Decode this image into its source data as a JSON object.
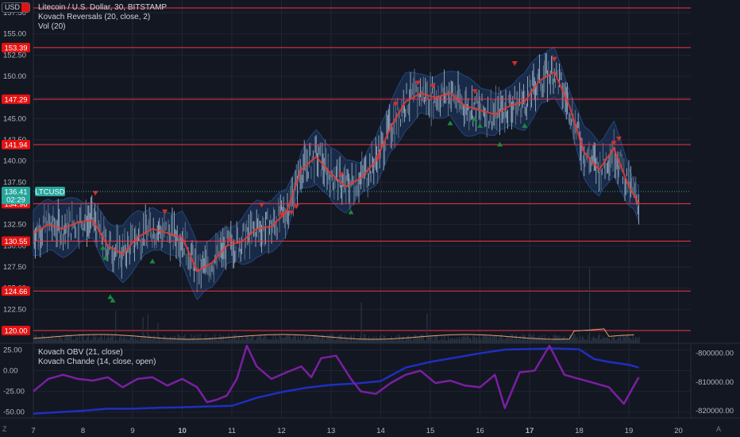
{
  "chart": {
    "legend": [
      "Litecoin / U.S. Dollar, 30, BITSTAMP",
      "Kovach Reversals (20, close, 2)",
      "Vol (20)"
    ],
    "sub_legend": [
      "Kovach OBV (21, close)",
      "Kovach Chande (14, close, open)"
    ],
    "currency": "USD",
    "symbol": "LTCUSD",
    "last_price": "136.41",
    "countdown": "02:29",
    "corner_left": "Z",
    "corner_right": "A",
    "colors": {
      "background": "#131722",
      "level": "#f23645",
      "ma": "#e53935",
      "band": "#1e3a66",
      "obv": "#1f2fbf",
      "chande": "#7b1fa2",
      "up": "#1b8a3a",
      "down": "#d32f2f",
      "volume": "#2a3544"
    }
  },
  "chart_data": [
    {
      "type": "line",
      "x_labels": [
        "7",
        "8",
        "9",
        "10",
        "11",
        "12",
        "13",
        "14",
        "15",
        "16",
        "17",
        "18",
        "19",
        "20"
      ],
      "y_ticks": [
        "157.50",
        "155.00",
        "152.50",
        "150.00",
        "147.50",
        "145.00",
        "142.50",
        "140.00",
        "137.50",
        "135.00",
        "132.50",
        "130.00",
        "127.50",
        "125.00",
        "122.50",
        "120.00"
      ],
      "ylim": [
        118.5,
        159.0
      ],
      "levels": [
        "153.39",
        "147.29",
        "141.94",
        "134.96",
        "130.55",
        "124.66",
        "120.00"
      ],
      "series": [
        {
          "name": "",
          "x": [
            7.0,
            7.3,
            7.6,
            7.9,
            8.2,
            8.5,
            8.8,
            9.1,
            9.4,
            9.7,
            10.0,
            10.3,
            10.6,
            10.9,
            11.2,
            11.5,
            11.8,
            12.1,
            12.4,
            12.7,
            13.0,
            13.3,
            13.6,
            13.9,
            14.2,
            14.5,
            14.8,
            15.1,
            15.4,
            15.7,
            16.0,
            16.3,
            16.6,
            16.9,
            17.2,
            17.5,
            17.8,
            18.1,
            18.4,
            18.7,
            19.0,
            19.2
          ],
          "y": [
            131.5,
            132.5,
            132.0,
            132.8,
            133.0,
            130.0,
            129.0,
            131.0,
            132.0,
            131.5,
            131.0,
            127.0,
            128.0,
            130.0,
            130.5,
            132.0,
            132.3,
            134.0,
            139.0,
            140.5,
            138.5,
            137.0,
            138.0,
            140.0,
            144.0,
            147.0,
            148.0,
            147.5,
            148.0,
            146.5,
            146.0,
            145.5,
            146.5,
            147.0,
            149.5,
            150.5,
            146.5,
            141.0,
            139.0,
            141.5,
            137.0,
            135.0
          ]
        }
      ],
      "down_signals": [
        [
          8.25,
          136.2
        ],
        [
          9.65,
          134.0
        ],
        [
          10.95,
          130.6
        ],
        [
          11.6,
          134.8
        ],
        [
          12.0,
          133.7
        ],
        [
          12.2,
          133.9
        ],
        [
          12.3,
          134.6
        ],
        [
          13.2,
          138.4
        ],
        [
          13.95,
          140.4
        ],
        [
          14.3,
          146.7
        ],
        [
          14.75,
          149.2
        ],
        [
          15.05,
          148.8
        ],
        [
          15.9,
          148.2
        ],
        [
          16.7,
          151.5
        ],
        [
          17.5,
          152.0
        ],
        [
          18.7,
          142.1
        ],
        [
          18.8,
          142.6
        ]
      ],
      "up_signals": [
        [
          8.4,
          129.8
        ],
        [
          8.45,
          128.6
        ],
        [
          8.55,
          124.0
        ],
        [
          8.6,
          123.6
        ],
        [
          9.4,
          128.2
        ],
        [
          13.4,
          134.0
        ],
        [
          15.4,
          144.5
        ],
        [
          15.9,
          145.0
        ],
        [
          16.0,
          144.2
        ],
        [
          16.4,
          142.0
        ],
        [
          16.9,
          144.2
        ]
      ]
    },
    {
      "type": "line",
      "y_ticks": [
        "25.00",
        "0.00",
        "-25.00",
        "-50.00"
      ],
      "ylim": [
        -57,
        33
      ],
      "y2_ticks": [
        "-800000.00",
        "-810000.00",
        "-820000.00"
      ],
      "y2lim": [
        -822500,
        -796500
      ],
      "series": [
        {
          "name": "Kovach OBV",
          "x": [
            7.0,
            7.5,
            8.0,
            8.5,
            9.0,
            9.5,
            10.0,
            10.5,
            11.0,
            11.5,
            12.0,
            12.5,
            13.0,
            13.5,
            14.0,
            14.5,
            15.0,
            15.5,
            16.0,
            16.5,
            17.0,
            17.5,
            18.0,
            18.3,
            18.6,
            19.0,
            19.2
          ],
          "y": [
            -821000,
            -820500,
            -820000,
            -819300,
            -819300,
            -819000,
            -818800,
            -818500,
            -818300,
            -815500,
            -813500,
            -812000,
            -811000,
            -810500,
            -809700,
            -805000,
            -803000,
            -801500,
            -800000,
            -798700,
            -798500,
            -798300,
            -798600,
            -802000,
            -803000,
            -804000,
            -805000
          ]
        },
        {
          "name": "Kovach Chande",
          "x": [
            7.0,
            7.3,
            7.6,
            7.9,
            8.2,
            8.5,
            8.8,
            9.1,
            9.4,
            9.7,
            10.0,
            10.3,
            10.5,
            10.7,
            10.9,
            11.1,
            11.3,
            11.5,
            11.8,
            12.1,
            12.4,
            12.6,
            12.8,
            13.1,
            13.4,
            13.6,
            13.9,
            14.2,
            14.5,
            14.8,
            15.1,
            15.4,
            15.7,
            16.0,
            16.3,
            16.5,
            16.8,
            17.1,
            17.4,
            17.7,
            18.0,
            18.3,
            18.6,
            18.9,
            19.2
          ],
          "y": [
            -25,
            -10,
            -5,
            -10,
            -12,
            -8,
            -20,
            -10,
            -8,
            -18,
            -10,
            -20,
            -38,
            -35,
            -30,
            -10,
            30,
            5,
            -10,
            -2,
            5,
            -8,
            15,
            18,
            -10,
            -25,
            -28,
            -15,
            -5,
            0,
            -15,
            -12,
            -18,
            -20,
            -5,
            -45,
            -2,
            0,
            30,
            -5,
            -10,
            -15,
            -20,
            -40,
            -8
          ]
        }
      ]
    }
  ]
}
